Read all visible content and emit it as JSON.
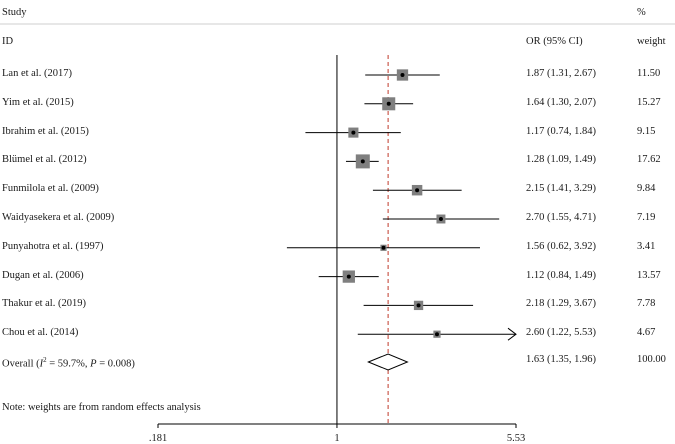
{
  "chart_data": {
    "type": "forest",
    "header": {
      "study": "Study",
      "id": "ID",
      "or_ci": "OR (95% CI)",
      "pct": "%",
      "weight": "weight"
    },
    "x_scale": "log",
    "xlim": [
      0.181,
      5.53
    ],
    "null_line": 1,
    "overall_line": 1.63,
    "x_ticks": [
      {
        "value": 0.181,
        "label": ".181"
      },
      {
        "value": 1,
        "label": "1"
      },
      {
        "value": 5.53,
        "label": "5.53"
      }
    ],
    "studies": [
      {
        "label": "Lan et al. (2017)",
        "or": 1.87,
        "lo": 1.31,
        "hi": 2.67,
        "ci_text": "1.87 (1.31, 2.67)",
        "weight": 11.5,
        "weight_text": "11.50",
        "arrow": false
      },
      {
        "label": "Yim et al. (2015)",
        "or": 1.64,
        "lo": 1.3,
        "hi": 2.07,
        "ci_text": "1.64 (1.30, 2.07)",
        "weight": 15.27,
        "weight_text": "15.27",
        "arrow": false
      },
      {
        "label": "Ibrahim et al. (2015)",
        "or": 1.17,
        "lo": 0.74,
        "hi": 1.84,
        "ci_text": "1.17 (0.74, 1.84)",
        "weight": 9.15,
        "weight_text": "9.15",
        "arrow": false
      },
      {
        "label": "Blümel et al. (2012)",
        "or": 1.28,
        "lo": 1.09,
        "hi": 1.49,
        "ci_text": "1.28 (1.09, 1.49)",
        "weight": 17.62,
        "weight_text": "17.62",
        "arrow": false
      },
      {
        "label": "Funmilola et al. (2009)",
        "or": 2.15,
        "lo": 1.41,
        "hi": 3.29,
        "ci_text": "2.15 (1.41, 3.29)",
        "weight": 9.84,
        "weight_text": "9.84",
        "arrow": false
      },
      {
        "label": "Waidyasekera et al. (2009)",
        "or": 2.7,
        "lo": 1.55,
        "hi": 4.71,
        "ci_text": "2.70 (1.55, 4.71)",
        "weight": 7.19,
        "weight_text": "7.19",
        "arrow": false
      },
      {
        "label": "Punyahotra et al. (1997)",
        "or": 1.56,
        "lo": 0.62,
        "hi": 3.92,
        "ci_text": "1.56 (0.62, 3.92)",
        "weight": 3.41,
        "weight_text": "3.41",
        "arrow": false
      },
      {
        "label": "Dugan et al. (2006)",
        "or": 1.12,
        "lo": 0.84,
        "hi": 1.49,
        "ci_text": "1.12 (0.84, 1.49)",
        "weight": 13.57,
        "weight_text": "13.57",
        "arrow": false
      },
      {
        "label": "Thakur et al. (2019)",
        "or": 2.18,
        "lo": 1.29,
        "hi": 3.67,
        "ci_text": "2.18 (1.29, 3.67)",
        "weight": 7.78,
        "weight_text": "7.78",
        "arrow": false
      },
      {
        "label": "Chou et al. (2014)",
        "or": 2.6,
        "lo": 1.22,
        "hi": 5.53,
        "ci_text": "2.60 (1.22, 5.53)",
        "weight": 4.67,
        "weight_text": "4.67",
        "arrow": true
      }
    ],
    "overall": {
      "label_prefix": "Overall (",
      "i2_symbol": "I",
      "i2_sup": "2",
      "label_middle": " = 59.7%, ",
      "p_symbol": "P",
      "label_suffix": " = 0.008)",
      "or": 1.63,
      "lo": 1.35,
      "hi": 1.96,
      "ci_text": "1.63 (1.35, 1.96)",
      "weight_text": "100.00"
    },
    "note": "Note: weights are from random effects analysis"
  }
}
